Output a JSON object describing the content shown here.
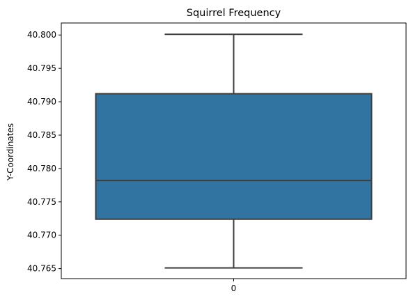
{
  "chart_data": {
    "type": "box",
    "title": "Squirrel Frequency",
    "xlabel": "",
    "ylabel": "Y-Coordinates",
    "categories": [
      "0"
    ],
    "ylim": [
      40.7635,
      40.8018
    ],
    "yticks": [
      "40.765",
      "40.770",
      "40.775",
      "40.780",
      "40.785",
      "40.790",
      "40.795",
      "40.800"
    ],
    "boxes": [
      {
        "category": "0",
        "whisker_low": 40.7651,
        "q1": 40.7724,
        "median": 40.7782,
        "q3": 40.7912,
        "whisker_high": 40.8001
      }
    ],
    "grid": false,
    "colors": {
      "box_fill": "#3274a1",
      "box_edge": "#3d3d3d",
      "axis": "#000000"
    }
  }
}
